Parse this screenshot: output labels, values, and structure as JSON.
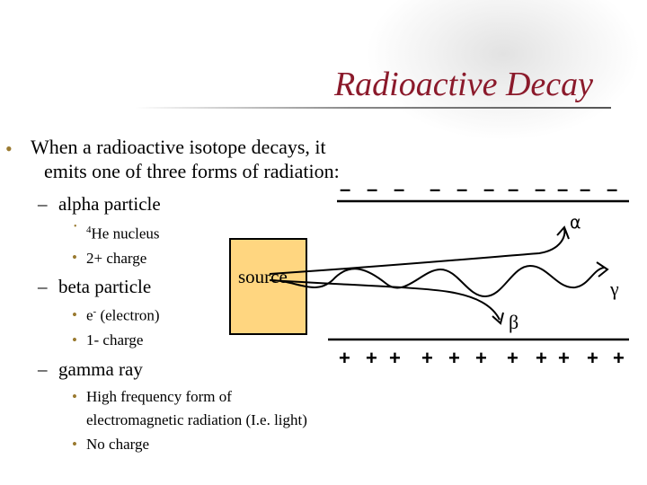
{
  "slide": {
    "title": "Radioactive Decay"
  },
  "bullets": {
    "main_line1": "When a radioactive isotope decays, it",
    "main_line2": "emits one of three forms of radiation:",
    "alpha": {
      "label": "alpha particle",
      "sub1_sup": "4",
      "sub1_rest": "He nucleus",
      "sub2": "2+ charge"
    },
    "beta": {
      "label": "beta particle",
      "sub1_base": "e",
      "sub1_sup": "-",
      "sub1_rest": " (electron)",
      "sub2": "1- charge"
    },
    "gamma": {
      "label": "gamma ray",
      "sub1_line1": "High frequency form of",
      "sub1_line2": "electromagnetic radiation (I.e. light)",
      "sub2": "No charge"
    },
    "dash": "–",
    "dot": "•"
  },
  "diagram": {
    "source_label": "source",
    "alpha_symbol": "α",
    "beta_symbol": "β",
    "gamma_symbol": "γ",
    "negative_sign": "–",
    "positive_sign": "+"
  },
  "colors": {
    "title": "#8b1a2b",
    "bullet": "#9a7a30",
    "source_fill": "#ffd680"
  }
}
